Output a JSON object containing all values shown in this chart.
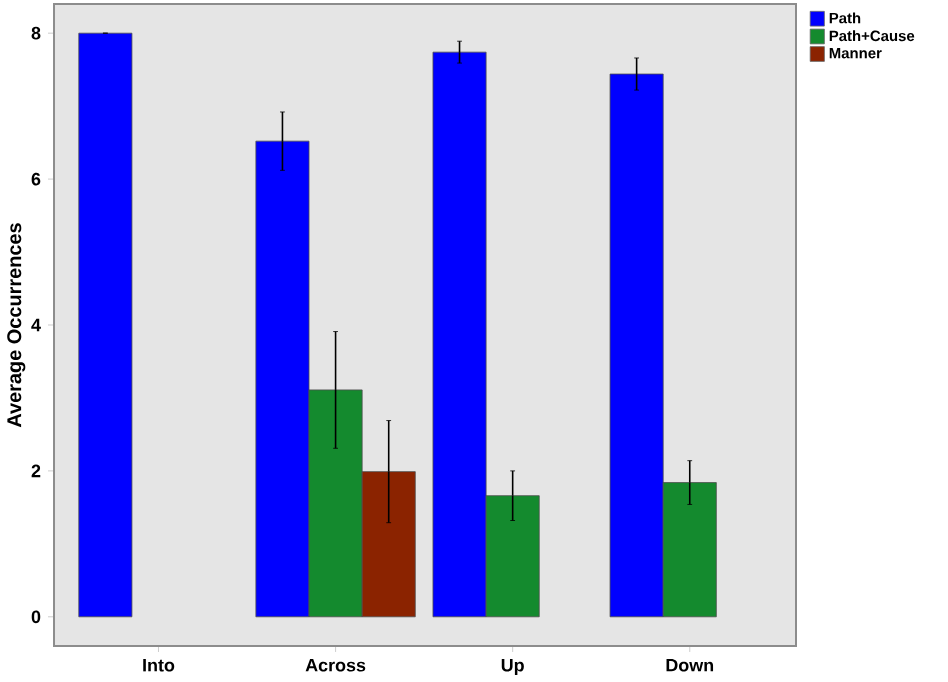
{
  "chart_data": {
    "type": "bar",
    "ylabel": "Average Occurrences",
    "categories": [
      "Into",
      "Across",
      "Up",
      "Down"
    ],
    "series": [
      {
        "name": "Path",
        "color": "#0000ff",
        "values": [
          8.0,
          6.52,
          7.74,
          7.44
        ],
        "errors": [
          0,
          0.4,
          0.15,
          0.22
        ]
      },
      {
        "name": "Path+Cause",
        "color": "#148a2e",
        "values": [
          null,
          3.11,
          1.66,
          1.84
        ],
        "errors": [
          null,
          0.8,
          0.34,
          0.3
        ]
      },
      {
        "name": "Manner",
        "color": "#8b2300",
        "values": [
          null,
          1.99,
          null,
          null
        ],
        "errors": [
          null,
          0.7,
          null,
          null
        ]
      }
    ],
    "ylim": [
      -0.4,
      8.4
    ],
    "yticks": [
      0,
      2,
      4,
      6,
      8
    ],
    "grid": false,
    "legend": "top right"
  }
}
